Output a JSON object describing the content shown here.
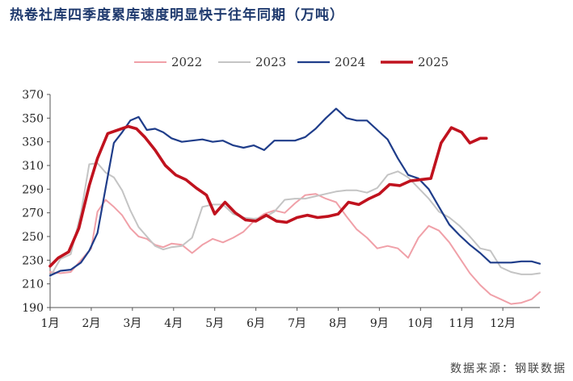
{
  "title": "热卷社库四季度累库速度明显快于往年同期（万吨）",
  "source": "数据来源：钢联数据",
  "chart_data": {
    "type": "line",
    "title": "热卷社库四季度累库速度明显快于往年同期（万吨）",
    "xlabel": "",
    "ylabel": "万吨",
    "ylim": [
      190,
      370
    ],
    "yticks": [
      190,
      210,
      230,
      250,
      270,
      290,
      310,
      330,
      350,
      370
    ],
    "xlim": [
      0,
      11.9
    ],
    "categories": [
      "1月",
      "2月",
      "3月",
      "4月",
      "5月",
      "6月",
      "7月",
      "8月",
      "9月",
      "10月",
      "11月",
      "12月"
    ],
    "legend": "top",
    "series": [
      {
        "name": "2022",
        "color": "#f0a0a8",
        "width": 2,
        "x": [
          0,
          0.25,
          0.5,
          0.75,
          1,
          1.15,
          1.35,
          1.55,
          1.75,
          1.95,
          2.15,
          2.35,
          2.55,
          2.75,
          2.95,
          3.2,
          3.45,
          3.7,
          3.95,
          4.2,
          4.45,
          4.7,
          4.95,
          5.2,
          5.45,
          5.7,
          5.95,
          6.2,
          6.45,
          6.7,
          6.95,
          7.2,
          7.45,
          7.7,
          7.95,
          8.2,
          8.45,
          8.7,
          8.95,
          9.2,
          9.45,
          9.7,
          9.95,
          10.2,
          10.45,
          10.7,
          10.95,
          11.2,
          11.45,
          11.7,
          11.9
        ],
        "y": [
          220,
          219,
          220,
          230,
          240,
          271,
          281,
          275,
          268,
          257,
          250,
          248,
          243,
          241,
          244,
          243,
          236,
          243,
          248,
          245,
          249,
          254,
          263,
          269,
          272,
          270,
          278,
          285,
          286,
          282,
          279,
          267,
          256,
          249,
          240,
          242,
          240,
          232,
          249,
          259,
          255,
          245,
          232,
          219,
          209,
          201,
          197,
          193,
          194,
          197,
          203
        ]
      },
      {
        "name": "2023",
        "color": "#c4c4c4",
        "width": 2,
        "x": [
          0,
          0.25,
          0.5,
          0.75,
          0.95,
          1.15,
          1.35,
          1.55,
          1.75,
          1.95,
          2.15,
          2.35,
          2.55,
          2.75,
          2.95,
          3.2,
          3.45,
          3.7,
          3.95,
          4.2,
          4.45,
          4.7,
          4.95,
          5.2,
          5.45,
          5.7,
          5.95,
          6.2,
          6.45,
          6.7,
          6.95,
          7.2,
          7.45,
          7.7,
          7.95,
          8.2,
          8.45,
          8.7,
          8.95,
          9.2,
          9.45,
          9.7,
          9.95,
          10.2,
          10.45,
          10.7,
          10.95,
          11.2,
          11.45,
          11.7,
          11.9
        ],
        "y": [
          216,
          231,
          235,
          270,
          311,
          312,
          304,
          300,
          289,
          272,
          258,
          250,
          242,
          239,
          241,
          242,
          249,
          275,
          277,
          277,
          269,
          266,
          265,
          266,
          271,
          281,
          282,
          282,
          284,
          286,
          288,
          289,
          289,
          287,
          291,
          302,
          305,
          300,
          291,
          282,
          271,
          266,
          259,
          250,
          240,
          238,
          224,
          220,
          218,
          218,
          219
        ]
      },
      {
        "name": "2024",
        "color": "#1f3d8a",
        "width": 2.2,
        "x": [
          0,
          0.25,
          0.5,
          0.75,
          0.95,
          1.15,
          1.35,
          1.55,
          1.75,
          1.95,
          2.15,
          2.35,
          2.55,
          2.75,
          2.95,
          3.2,
          3.45,
          3.7,
          3.95,
          4.2,
          4.45,
          4.7,
          4.95,
          5.2,
          5.45,
          5.7,
          5.95,
          6.2,
          6.45,
          6.7,
          6.95,
          7.2,
          7.45,
          7.7,
          7.95,
          8.2,
          8.45,
          8.7,
          8.95,
          9.2,
          9.45,
          9.7,
          9.95,
          10.2,
          10.45,
          10.7,
          10.95,
          11.2,
          11.45,
          11.7,
          11.9
        ],
        "y": [
          217,
          221,
          222,
          228,
          238,
          253,
          291,
          329,
          338,
          348,
          351,
          340,
          341,
          338,
          333,
          330,
          331,
          332,
          330,
          331,
          327,
          325,
          327,
          323,
          331,
          331,
          331,
          334,
          341,
          350,
          358,
          350,
          348,
          348,
          340,
          332,
          316,
          302,
          299,
          290,
          275,
          260,
          251,
          243,
          236,
          228,
          228,
          228,
          229,
          229,
          227
        ]
      },
      {
        "name": "2025",
        "color": "#c0121e",
        "width": 3.6,
        "x": [
          0,
          0.2,
          0.45,
          0.7,
          0.95,
          1.15,
          1.4,
          1.65,
          1.9,
          2.1,
          2.3,
          2.55,
          2.8,
          3.05,
          3.3,
          3.55,
          3.8,
          4.0,
          4.25,
          4.5,
          4.75,
          5.0,
          5.25,
          5.5,
          5.75,
          6.0,
          6.25,
          6.5,
          6.75,
          7.0,
          7.25,
          7.5,
          7.75,
          8.0,
          8.25,
          8.5,
          8.75,
          9.0,
          9.25,
          9.5,
          9.75,
          10.0,
          10.2,
          10.45,
          10.6
        ],
        "y": [
          225,
          232,
          237,
          257,
          293,
          316,
          337,
          340,
          343,
          341,
          334,
          323,
          310,
          302,
          298,
          291,
          285,
          269,
          279,
          270,
          264,
          263,
          268,
          263,
          262,
          266,
          268,
          266,
          267,
          269,
          279,
          277,
          282,
          286,
          294,
          293,
          297,
          298,
          299,
          329,
          342,
          338,
          329,
          333,
          333
        ]
      }
    ]
  }
}
